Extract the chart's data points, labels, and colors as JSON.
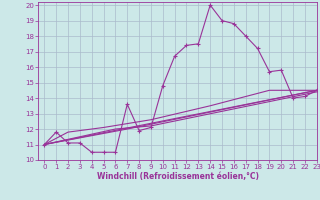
{
  "xlabel": "Windchill (Refroidissement éolien,°C)",
  "xlim": [
    -0.5,
    23
  ],
  "ylim": [
    10,
    20.2
  ],
  "xticks": [
    0,
    1,
    2,
    3,
    4,
    5,
    6,
    7,
    8,
    9,
    10,
    11,
    12,
    13,
    14,
    15,
    16,
    17,
    18,
    19,
    20,
    21,
    22,
    23
  ],
  "yticks": [
    10,
    11,
    12,
    13,
    14,
    15,
    16,
    17,
    18,
    19,
    20
  ],
  "bg_color": "#cce8e8",
  "line_color": "#993399",
  "grid_color": "#aabbcc",
  "main_series": [
    [
      0,
      11.0
    ],
    [
      1,
      11.8
    ],
    [
      2,
      11.1
    ],
    [
      3,
      11.1
    ],
    [
      4,
      10.5
    ],
    [
      5,
      10.5
    ],
    [
      6,
      10.5
    ],
    [
      7,
      13.6
    ],
    [
      8,
      11.9
    ],
    [
      9,
      12.1
    ],
    [
      10,
      14.8
    ],
    [
      11,
      16.7
    ],
    [
      12,
      17.4
    ],
    [
      13,
      17.5
    ],
    [
      14,
      20.0
    ],
    [
      15,
      19.0
    ],
    [
      16,
      18.8
    ],
    [
      17,
      18.0
    ],
    [
      18,
      17.2
    ],
    [
      19,
      15.7
    ],
    [
      20,
      15.8
    ],
    [
      21,
      14.0
    ],
    [
      22,
      14.1
    ],
    [
      23,
      14.5
    ]
  ],
  "line2": [
    [
      0,
      11.0
    ],
    [
      23,
      14.5
    ]
  ],
  "line3": [
    [
      0,
      11.0
    ],
    [
      7,
      12.0
    ],
    [
      23,
      14.5
    ]
  ],
  "line4": [
    [
      0,
      11.0
    ],
    [
      6,
      12.0
    ],
    [
      9,
      12.2
    ],
    [
      23,
      14.4
    ]
  ],
  "line5": [
    [
      0,
      11.0
    ],
    [
      2,
      11.8
    ],
    [
      5,
      12.1
    ],
    [
      9,
      12.6
    ],
    [
      14,
      13.5
    ],
    [
      19,
      14.5
    ],
    [
      23,
      14.5
    ]
  ]
}
